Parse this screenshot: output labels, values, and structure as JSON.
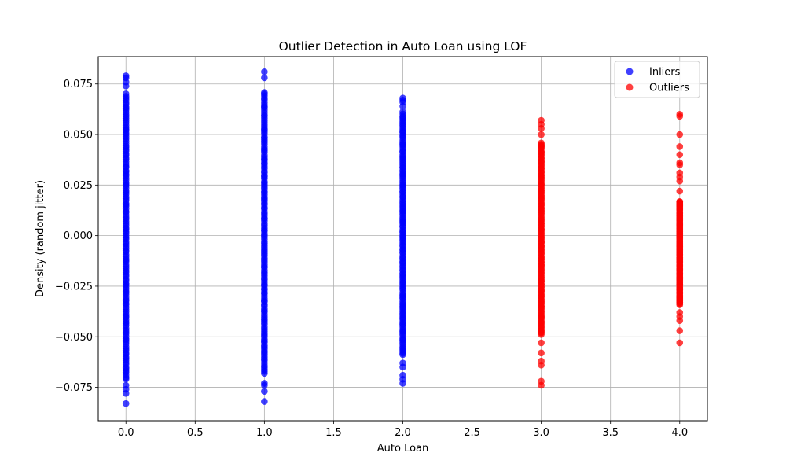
{
  "chart_data": {
    "type": "scatter",
    "title": "Outlier Detection in Auto Loan using LOF",
    "xlabel": "Auto Loan",
    "ylabel": "Density (random jitter)",
    "xlim": [
      -0.2,
      4.2
    ],
    "ylim": [
      -0.0915,
      0.0885
    ],
    "xticks": [
      0.0,
      0.5,
      1.0,
      1.5,
      2.0,
      2.5,
      3.0,
      3.5,
      4.0
    ],
    "xtick_labels": [
      "0.0",
      "0.5",
      "1.0",
      "1.5",
      "2.0",
      "2.5",
      "3.0",
      "3.5",
      "4.0"
    ],
    "yticks": [
      -0.075,
      -0.05,
      -0.025,
      0.0,
      0.025,
      0.05,
      0.075
    ],
    "ytick_labels": [
      "−0.075",
      "−0.050",
      "−0.025",
      "0.000",
      "0.025",
      "0.050",
      "0.075"
    ],
    "grid": true,
    "legend_position": "top-right",
    "series": [
      {
        "name": "Inliers",
        "color": "#0000ff",
        "alpha": 0.75,
        "columns": [
          {
            "x": 0,
            "ymin": -0.083,
            "ymax": 0.079,
            "dense_min": -0.071,
            "dense_max": 0.07,
            "extra": [
              -0.083,
              -0.078,
              -0.076,
              -0.074,
              0.074,
              0.076,
              0.078,
              0.079
            ]
          },
          {
            "x": 1,
            "ymin": -0.082,
            "ymax": 0.081,
            "dense_min": -0.068,
            "dense_max": 0.071,
            "extra": [
              -0.082,
              -0.077,
              -0.074,
              -0.073,
              0.078,
              0.081
            ]
          },
          {
            "x": 2,
            "ymin": -0.073,
            "ymax": 0.068,
            "dense_min": -0.059,
            "dense_max": 0.061,
            "extra": [
              -0.073,
              -0.071,
              -0.069,
              -0.065,
              -0.063,
              0.064,
              0.066,
              0.067,
              0.068
            ]
          }
        ]
      },
      {
        "name": "Outliers",
        "color": "#ff0000",
        "alpha": 0.75,
        "columns": [
          {
            "x": 3,
            "ymin": -0.074,
            "ymax": 0.057,
            "dense_min": -0.049,
            "dense_max": 0.046,
            "extra": [
              -0.074,
              -0.072,
              -0.064,
              -0.062,
              -0.058,
              -0.053,
              0.05,
              0.053,
              0.055,
              0.057
            ]
          },
          {
            "x": 4,
            "ymin": -0.053,
            "ymax": 0.06,
            "dense_min": -0.034,
            "dense_max": 0.017,
            "extra": [
              -0.053,
              -0.047,
              -0.042,
              -0.04,
              -0.038,
              0.022,
              0.027,
              0.029,
              0.031,
              0.035,
              0.036,
              0.04,
              0.044,
              0.05,
              0.059,
              0.06
            ]
          }
        ]
      }
    ]
  }
}
